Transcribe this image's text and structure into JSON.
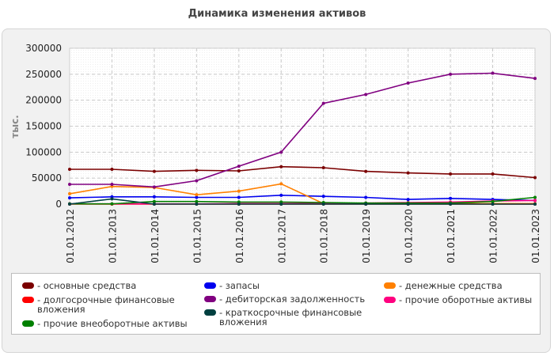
{
  "title": "Динамика изменения активов",
  "chart_data": {
    "type": "line",
    "title": "Динамика изменения активов",
    "ylabel": "тыс.",
    "xlabel": "",
    "ylim": [
      0,
      300000
    ],
    "yticks": [
      "0",
      "50000",
      "100000",
      "150000",
      "200000",
      "250000",
      "300000"
    ],
    "categories": [
      "01.01.2012",
      "01.01.2013",
      "01.01.2014",
      "01.01.2015",
      "01.01.2016",
      "01.01.2017",
      "01.01.2018",
      "01.01.2019",
      "01.01.2020",
      "01.01.2021",
      "01.01.2022",
      "01.01.2023"
    ],
    "grid": true,
    "legend_position": "bottom",
    "series": [
      {
        "name": "- основные средства",
        "color": "#7b0000",
        "values": [
          67000,
          67000,
          63000,
          65000,
          64000,
          72000,
          70000,
          63000,
          60000,
          58000,
          58000,
          51000
        ]
      },
      {
        "name": "- запасы",
        "color": "#0000ee",
        "values": [
          12000,
          14000,
          14000,
          13000,
          13000,
          17000,
          15000,
          13000,
          9000,
          11000,
          9000,
          7000
        ]
      },
      {
        "name": "- денежные средства",
        "color": "#ff8000",
        "values": [
          20000,
          34000,
          32000,
          18000,
          25000,
          39000,
          1000,
          500,
          1000,
          1000,
          1000,
          1000
        ]
      },
      {
        "name": "- долгосрочные финансовые вложения",
        "color": "#ff0000",
        "values": [
          0,
          0,
          0,
          0,
          0,
          0,
          0,
          0,
          0,
          0,
          0,
          0
        ]
      },
      {
        "name": "- дебиторская задолженность",
        "color": "#800080",
        "values": [
          38000,
          38000,
          33000,
          45000,
          73000,
          100000,
          194000,
          211000,
          233000,
          250000,
          252000,
          242000
        ]
      },
      {
        "name": "- прочие оборотные активы",
        "color": "#ff007f",
        "values": [
          500,
          500,
          500,
          500,
          1000,
          1000,
          1000,
          2000,
          3000,
          4000,
          6000,
          7000
        ]
      },
      {
        "name": "- прочие внеоборотные активы",
        "color": "#008000",
        "values": [
          500,
          500,
          5000,
          5000,
          4000,
          4000,
          3000,
          2000,
          2000,
          2000,
          5000,
          13000
        ]
      },
      {
        "name": "- краткосрочные финансовые вложения",
        "color": "#004040",
        "values": [
          0,
          10000,
          0,
          0,
          0,
          0,
          0,
          0,
          0,
          0,
          0,
          0
        ]
      }
    ]
  }
}
